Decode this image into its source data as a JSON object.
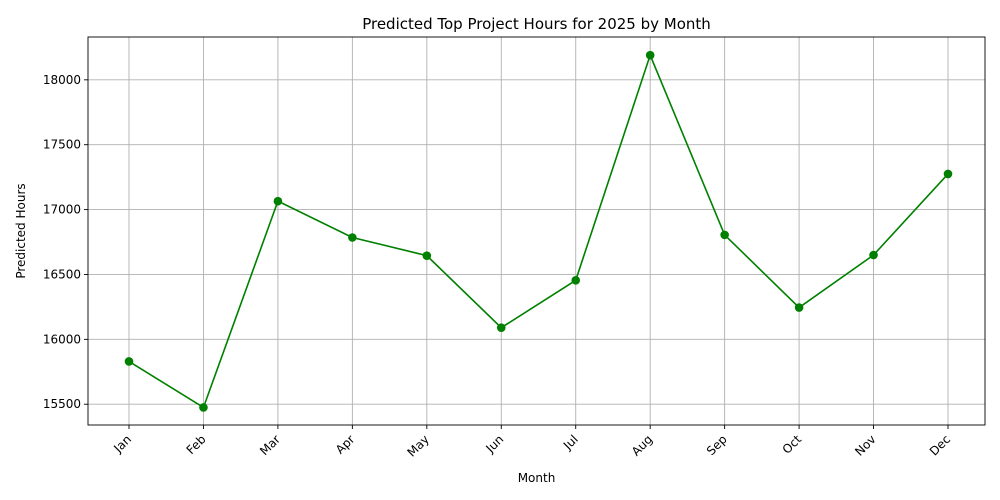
{
  "chart_data": {
    "type": "line",
    "title": "Predicted Top Project Hours for 2025 by Month",
    "xlabel": "Month",
    "ylabel": "Predicted Hours",
    "categories": [
      "Jan",
      "Feb",
      "Mar",
      "Apr",
      "May",
      "Jun",
      "Jul",
      "Aug",
      "Sep",
      "Oct",
      "Nov",
      "Dec"
    ],
    "series": [
      {
        "values": [
          15830,
          15475,
          17065,
          16785,
          16645,
          16090,
          16455,
          18190,
          16805,
          16245,
          16650,
          17275
        ],
        "color": "#008000",
        "marker": "circle"
      }
    ],
    "ylim": [
      15340,
      18330
    ],
    "yticks": [
      15500,
      16000,
      16500,
      17000,
      17500,
      18000
    ],
    "grid": true,
    "xtick_rotation": 45
  }
}
